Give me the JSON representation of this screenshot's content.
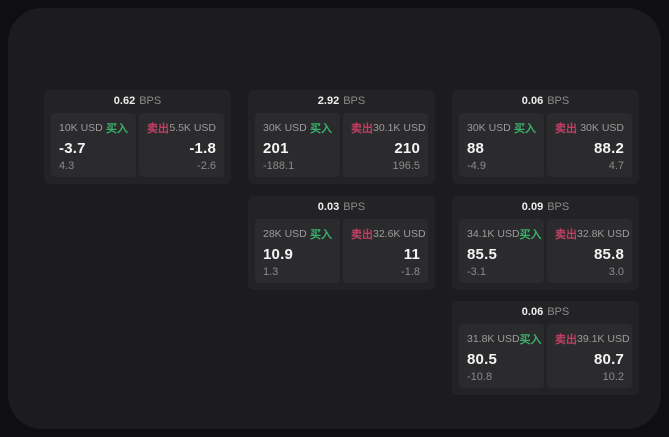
{
  "theme": {
    "outer_bg": "#0f0f11",
    "panel_bg": "#1c1c1e",
    "card_bg": "#232325",
    "tile_bg": "#2b2b2d",
    "buy_color": "#39b06b",
    "sell_color": "#c13f63"
  },
  "labels": {
    "bps_unit": "BPS",
    "buy": "买入",
    "sell": "卖出"
  },
  "cards": [
    {
      "bps": "0.62",
      "buy": {
        "notional": "10K USD",
        "price": "-3.7",
        "delta": "4.3"
      },
      "sell": {
        "notional": "5.5K USD",
        "price": "-1.8",
        "delta": "-2.6"
      }
    },
    {
      "bps": "2.92",
      "buy": {
        "notional": "30K USD",
        "price": "201",
        "delta": "-188.1"
      },
      "sell": {
        "notional": "30.1K USD",
        "price": "210",
        "delta": "196.5"
      }
    },
    {
      "bps": "0.06",
      "buy": {
        "notional": "30K USD",
        "price": "88",
        "delta": "-4.9"
      },
      "sell": {
        "notional": "30K USD",
        "price": "88.2",
        "delta": "4.7"
      }
    },
    {
      "bps": "0.03",
      "buy": {
        "notional": "28K USD",
        "price": "10.9",
        "delta": "1.3"
      },
      "sell": {
        "notional": "32.6K USD",
        "price": "11",
        "delta": "-1.8"
      }
    },
    {
      "bps": "0.09",
      "buy": {
        "notional": "34.1K USD",
        "price": "85.5",
        "delta": "-3.1"
      },
      "sell": {
        "notional": "32.8K USD",
        "price": "85.8",
        "delta": "3.0"
      }
    },
    {
      "bps": "0.06",
      "buy": {
        "notional": "31.8K USD",
        "price": "80.5",
        "delta": "-10.8"
      },
      "sell": {
        "notional": "39.1K USD",
        "price": "80.7",
        "delta": "10.2"
      }
    }
  ]
}
